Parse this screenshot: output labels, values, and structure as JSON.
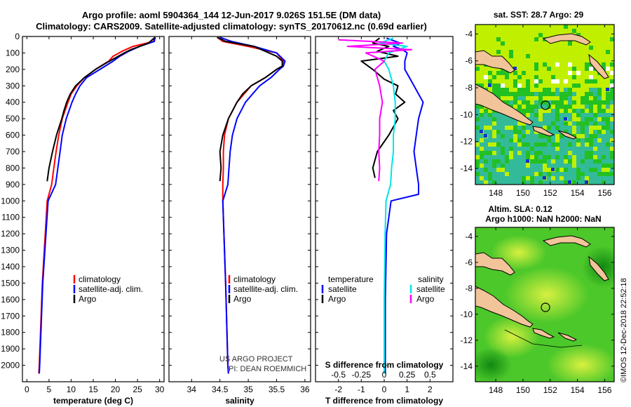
{
  "header": {
    "line1": "Argo profile: aoml 5904364_144 12-Jun-2017 9.026S 151.5E (DM data)",
    "line2": "Climatology: CARS2009. Satellite-adjusted climatology: synTS_20170612.nc (0.69d earlier)"
  },
  "credits": {
    "project": "US ARGO PROJECT",
    "pi": "PI: DEAN ROEMMICH",
    "imos": "©IMOS 12-Dec-2018 22:52:18"
  },
  "colors": {
    "argo": "#000000",
    "climatology": "#ff0000",
    "satellite": "#0000ff",
    "sat_salinity": "#00e5e5",
    "argo_salinity": "#ff00ff",
    "land": "#f2c49a",
    "sea_warm": "#c0f000",
    "sea_mid": "#22c022",
    "sea_cool": "#33bb99"
  },
  "depth_axis": {
    "range": [
      0,
      2100
    ],
    "ticks": [
      "0",
      "100",
      "200",
      "300",
      "400",
      "500",
      "600",
      "700",
      "800",
      "900",
      "1000",
      "1100",
      "1200",
      "1300",
      "1400",
      "1500",
      "1600",
      "1700",
      "1800",
      "1900",
      "2000"
    ]
  },
  "chart_data": [
    {
      "type": "line",
      "id": "temperature",
      "xlabel": "temperature (deg C)",
      "xlim": [
        -1,
        31
      ],
      "xticks": [
        "0",
        "5",
        "10",
        "15",
        "20",
        "25",
        "30"
      ],
      "ylabel": "depth",
      "legend": [
        "climatology",
        "satellite-adj. clim.",
        "Argo"
      ],
      "series": [
        {
          "name": "climatology",
          "depth": [
            5,
            30,
            60,
            90,
            120,
            150,
            200,
            250,
            300,
            350,
            400,
            500,
            600,
            700,
            800,
            900,
            1000,
            1500,
            2000,
            2050
          ],
          "values": [
            28.8,
            28.6,
            24.0,
            21.5,
            19.5,
            18.5,
            15.5,
            13.0,
            11.3,
            10.0,
            9.3,
            8.0,
            7.2,
            6.6,
            6.1,
            5.6,
            4.6,
            3.5,
            2.8,
            2.7
          ]
        },
        {
          "name": "satellite-adj. clim.",
          "depth": [
            5,
            30,
            60,
            90,
            120,
            150,
            200,
            250,
            300,
            350,
            400,
            500,
            600,
            700,
            800,
            900,
            1000,
            1500,
            2000,
            2050
          ],
          "values": [
            29.0,
            28.8,
            25.5,
            23.0,
            21.0,
            19.5,
            16.5,
            13.5,
            12.0,
            11.0,
            10.2,
            8.9,
            8.0,
            7.5,
            7.0,
            6.5,
            4.8,
            3.6,
            2.9,
            2.8
          ]
        },
        {
          "name": "Argo",
          "depth": [
            5,
            20,
            40,
            60,
            80,
            100,
            130,
            160,
            200,
            250,
            300,
            350,
            400,
            450,
            500,
            600,
            700,
            800,
            880
          ],
          "values": [
            29.0,
            28.3,
            27.5,
            25.5,
            23.5,
            22.0,
            20.0,
            18.0,
            15.5,
            13.0,
            11.0,
            9.8,
            9.0,
            8.4,
            7.9,
            6.7,
            5.8,
            5.0,
            4.6
          ]
        }
      ]
    },
    {
      "type": "line",
      "id": "salinity",
      "xlabel": "salinity",
      "xlim": [
        33.6,
        36.1
      ],
      "xticks": [
        "34",
        "34.5",
        "35",
        "35.5",
        "36"
      ],
      "ylabel": "depth",
      "legend": [
        "climatology",
        "satellite-adj. clim.",
        "Argo"
      ],
      "series": [
        {
          "name": "climatology",
          "depth": [
            5,
            30,
            60,
            100,
            150,
            180,
            200,
            250,
            300,
            400,
            500,
            600,
            700,
            800,
            900,
            1000,
            1500,
            2000,
            2050
          ],
          "values": [
            34.45,
            34.55,
            35.0,
            35.5,
            35.62,
            35.6,
            35.5,
            35.3,
            35.05,
            34.8,
            34.65,
            34.58,
            34.56,
            34.56,
            34.55,
            34.55,
            34.6,
            34.64,
            34.65
          ]
        },
        {
          "name": "satellite-adj. clim.",
          "depth": [
            5,
            30,
            60,
            100,
            150,
            180,
            200,
            250,
            300,
            400,
            500,
            600,
            700,
            800,
            900,
            1000,
            1500,
            2000,
            2050
          ],
          "values": [
            34.5,
            34.7,
            35.1,
            35.5,
            35.65,
            35.62,
            35.55,
            35.4,
            35.2,
            34.95,
            34.8,
            34.72,
            34.68,
            34.66,
            34.64,
            34.55,
            34.6,
            34.64,
            34.65
          ]
        },
        {
          "name": "Argo",
          "depth": [
            5,
            30,
            60,
            90,
            120,
            150,
            180,
            200,
            250,
            300,
            350,
            400,
            500,
            600,
            700,
            800,
            880
          ],
          "values": [
            34.45,
            34.6,
            35.1,
            35.3,
            35.5,
            35.6,
            35.6,
            35.5,
            35.3,
            35.05,
            34.9,
            34.8,
            34.65,
            34.55,
            34.5,
            34.52,
            34.5
          ]
        }
      ]
    },
    {
      "type": "line",
      "id": "differences",
      "xlabel": "T difference from climatology",
      "xlabel2": "S difference from climatology",
      "xlim": [
        -3,
        3
      ],
      "xticks": [
        "-2",
        "-1",
        "0",
        "1",
        "2"
      ],
      "xticks2": [
        "-0.5",
        "-0.25",
        "0",
        "0.25",
        "0.5"
      ],
      "legend_left_title": "temperature",
      "legend_right_title": "salinity",
      "legend_left": [
        "satellite",
        "Argo"
      ],
      "legend_right": [
        "satellite",
        "Argo"
      ],
      "series": [
        {
          "name": "temperature satellite",
          "depth": [
            10,
            40,
            60,
            80,
            100,
            150,
            200,
            300,
            400,
            500,
            600,
            700,
            800,
            900,
            960,
            1000,
            1200,
            1600,
            2000,
            2050
          ],
          "values": [
            0.1,
            0.7,
            0.4,
            0.8,
            1.0,
            0.9,
            0.9,
            1.3,
            1.7,
            1.5,
            1.4,
            1.3,
            1.4,
            1.5,
            1.5,
            0.3,
            0.1,
            0.05,
            0.05,
            0.05
          ]
        },
        {
          "name": "temperature Argo",
          "depth": [
            10,
            40,
            60,
            90,
            120,
            150,
            200,
            260,
            300,
            350,
            400,
            450,
            500,
            600,
            700,
            800,
            860
          ],
          "values": [
            -0.2,
            -0.5,
            0.2,
            -0.3,
            0.6,
            -1.0,
            -0.5,
            0.0,
            0.6,
            0.5,
            0.9,
            0.4,
            0.6,
            0.2,
            -0.3,
            -0.5,
            -0.4
          ]
        },
        {
          "name": "salinity satellite",
          "depth": [
            10,
            40,
            60,
            100,
            150,
            200,
            300,
            400,
            500,
            600,
            700,
            800,
            900,
            1000,
            1200,
            1600,
            2000,
            2050
          ],
          "values": [
            0.1,
            -0.05,
            0.25,
            0.05,
            0.0,
            0.05,
            0.1,
            0.12,
            0.12,
            0.1,
            0.1,
            0.08,
            0.07,
            0.02,
            0.01,
            0.0,
            0.0,
            0.0
          ]
        },
        {
          "name": "salinity Argo",
          "depth": [
            20,
            40,
            60,
            80,
            100,
            150,
            200,
            300,
            400,
            500,
            600,
            700,
            800,
            880
          ],
          "values": [
            -0.5,
            0.2,
            -0.4,
            0.3,
            -0.2,
            0.0,
            -0.1,
            -0.05,
            -0.02,
            -0.05,
            -0.05,
            -0.06,
            -0.05,
            -0.06
          ]
        }
      ]
    }
  ],
  "maps": {
    "sst": {
      "title": "sat. SST: 28.7 Argo: 29",
      "yticks": [
        "-4",
        "-6",
        "-8",
        "-10",
        "-12",
        "-14"
      ],
      "xticks": [
        "148",
        "150",
        "152",
        "154",
        "156"
      ]
    },
    "sla": {
      "title1": "Altim. SLA: 0.12",
      "title2": "Argo h1000: NaN h2000: NaN",
      "yticks": [
        "-4",
        "-6",
        "-8",
        "-10",
        "-12",
        "-14"
      ],
      "xticks": [
        "148",
        "150",
        "152",
        "154",
        "156"
      ]
    }
  }
}
